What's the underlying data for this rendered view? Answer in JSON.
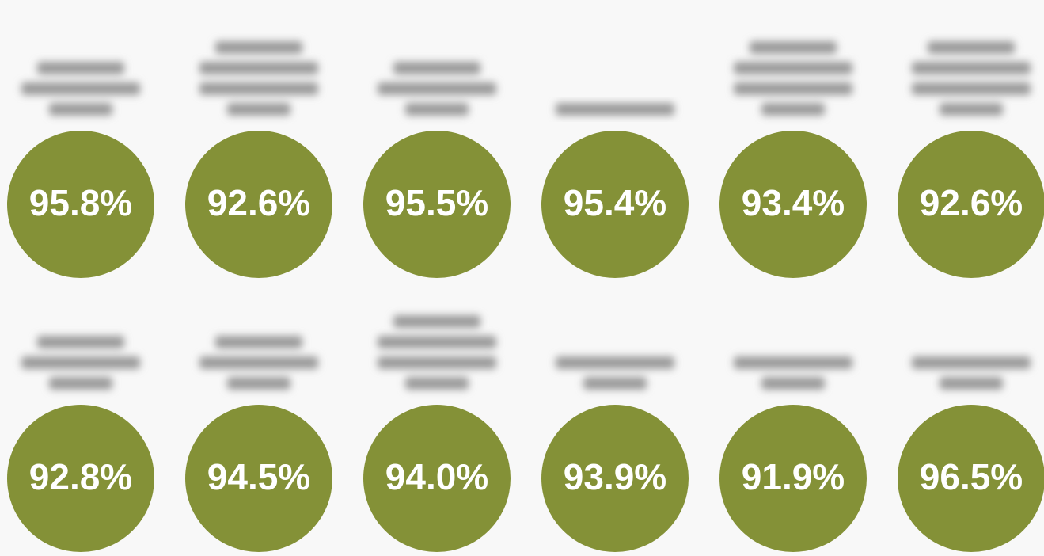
{
  "tiles": [
    [
      "95.8%",
      "92.6%",
      "95.5%",
      "95.4%",
      "93.4%",
      "92.6%"
    ],
    [
      "92.8%",
      "94.5%",
      "94.0%",
      "93.9%",
      "91.9%",
      "96.5%"
    ]
  ]
}
